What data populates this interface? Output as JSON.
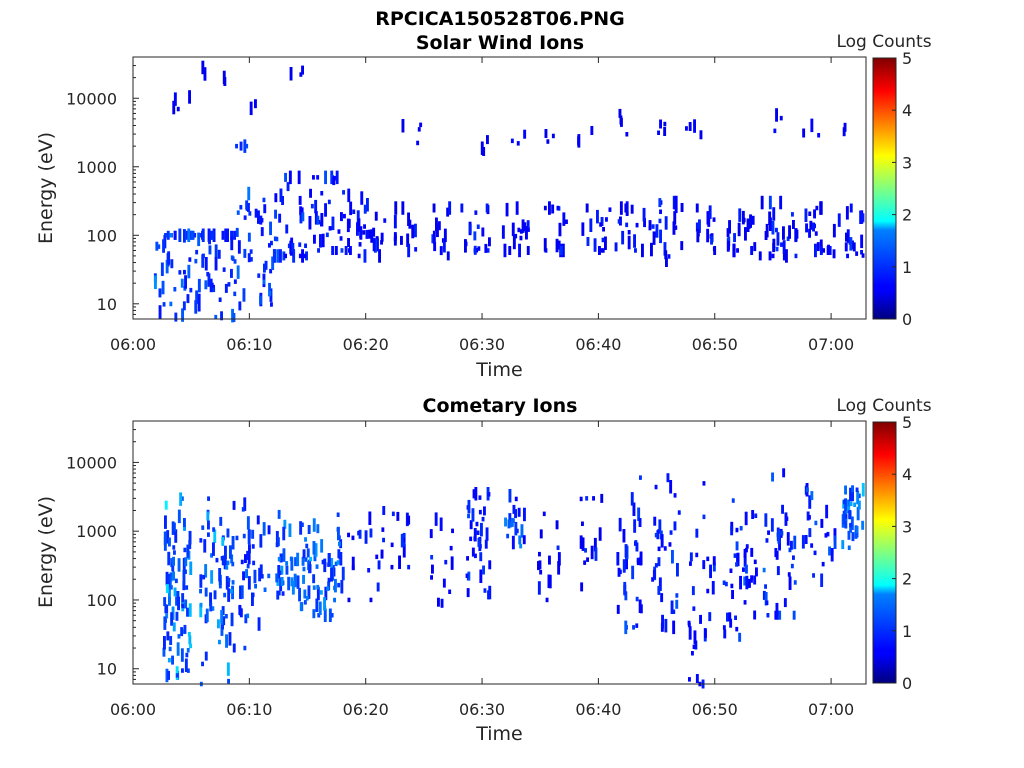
{
  "figure": {
    "filename": "RPCICA150528T06.PNG"
  },
  "chart_data": [
    {
      "type": "heatmap",
      "title": "Solar Wind Ions",
      "xlabel": "Time",
      "ylabel": "Energy (eV)",
      "yscale": "log",
      "ylim": [
        6,
        40000
      ],
      "xlim_minutes": [
        0,
        63
      ],
      "x_tick_labels": [
        "06:00",
        "06:10",
        "06:20",
        "06:30",
        "06:40",
        "06:50",
        "07:00"
      ],
      "y_tick_labels": [
        "10",
        "100",
        "1000",
        "10000"
      ],
      "colorbar": {
        "label": "Log Counts",
        "range": [
          0,
          5
        ],
        "tick_labels": [
          "0",
          "1",
          "2",
          "3",
          "4",
          "5"
        ],
        "colormap": "jet"
      },
      "clusters": [
        {
          "t": 3.7,
          "e": 40,
          "sp": 22,
          "w": 1.8,
          "f": [
            3,
            100
          ],
          "n": 60,
          "lv": 0.5,
          "hi": 1.4
        },
        {
          "t": 7.2,
          "e": 30,
          "sp": 22,
          "w": 1.6,
          "f": [
            3,
            100
          ],
          "n": 55,
          "lv": 0.5,
          "hi": 1.3
        },
        {
          "t": 10.5,
          "e": 60,
          "sp": 25,
          "w": 1.6,
          "f": [
            5,
            2000
          ],
          "n": 50,
          "lv": 0.5,
          "hi": 1.2
        },
        {
          "t": 13.5,
          "e": 120,
          "sp": 10,
          "w": 1.5,
          "f": [
            50,
            700
          ],
          "n": 35,
          "lv": 0.4,
          "hi": 1.0
        },
        {
          "t": 17.0,
          "e": 140,
          "sp": 8,
          "w": 1.8,
          "f": [
            60,
            700
          ],
          "n": 40,
          "lv": 0.4,
          "hi": 1.0
        },
        {
          "t": 20.3,
          "e": 110,
          "sp": 4,
          "w": 1.8,
          "f": [
            50,
            350
          ],
          "n": 30,
          "lv": 0.3,
          "hi": 0.8
        },
        {
          "t": 23.3,
          "e": 110,
          "sp": 3,
          "w": 1.0,
          "f": [
            60,
            250
          ],
          "n": 15,
          "lv": 0.3,
          "hi": 0.8
        },
        {
          "t": 26.5,
          "e": 110,
          "sp": 3,
          "w": 0.8,
          "f": [
            50,
            250
          ],
          "n": 14,
          "lv": 0.3,
          "hi": 0.8
        },
        {
          "t": 29.5,
          "e": 110,
          "sp": 3,
          "w": 1.3,
          "f": [
            60,
            250
          ],
          "n": 18,
          "lv": 0.3,
          "hi": 0.8
        },
        {
          "t": 33.0,
          "e": 110,
          "sp": 3,
          "w": 1.3,
          "f": [
            60,
            250
          ],
          "n": 18,
          "lv": 0.3,
          "hi": 0.8
        },
        {
          "t": 36.5,
          "e": 110,
          "sp": 3,
          "w": 1.3,
          "f": [
            60,
            250
          ],
          "n": 16,
          "lv": 0.3,
          "hi": 0.8
        },
        {
          "t": 39.8,
          "e": 120,
          "sp": 3,
          "w": 1.2,
          "f": [
            60,
            250
          ],
          "n": 16,
          "lv": 0.3,
          "hi": 0.8
        },
        {
          "t": 42.8,
          "e": 120,
          "sp": 3,
          "w": 1.3,
          "f": [
            60,
            250
          ],
          "n": 18,
          "lv": 0.3,
          "hi": 0.8
        },
        {
          "t": 45.8,
          "e": 110,
          "sp": 4,
          "w": 1.5,
          "f": [
            40,
            300
          ],
          "n": 25,
          "lv": 0.3,
          "hi": 0.8
        },
        {
          "t": 49.0,
          "e": 110,
          "sp": 3,
          "w": 1.0,
          "f": [
            60,
            250
          ],
          "n": 15,
          "lv": 0.3,
          "hi": 0.8
        },
        {
          "t": 52.3,
          "e": 110,
          "sp": 4,
          "w": 1.4,
          "f": [
            60,
            300
          ],
          "n": 20,
          "lv": 0.3,
          "hi": 0.8
        },
        {
          "t": 55.5,
          "e": 100,
          "sp": 4,
          "w": 1.6,
          "f": [
            50,
            300
          ],
          "n": 30,
          "lv": 0.3,
          "hi": 0.8
        },
        {
          "t": 58.8,
          "e": 110,
          "sp": 3,
          "w": 1.3,
          "f": [
            60,
            250
          ],
          "n": 20,
          "lv": 0.3,
          "hi": 0.8
        },
        {
          "t": 61.8,
          "e": 100,
          "sp": 3,
          "w": 1.6,
          "f": [
            50,
            250
          ],
          "n": 22,
          "lv": 0.3,
          "hi": 0.8
        },
        {
          "t": 7.0,
          "e": 20000,
          "sp": 2,
          "w": 1.0,
          "f": [
            3000,
            30000
          ],
          "n": 4,
          "lv": 0.3,
          "hi": 0.5
        },
        {
          "t": 14.5,
          "e": 20000,
          "sp": 1.5,
          "w": 1.0,
          "f": [
            3000,
            30000
          ],
          "n": 3,
          "lv": 0.3,
          "hi": 0.5
        },
        {
          "t": 24.0,
          "e": 3000,
          "sp": 1.5,
          "w": 1.0,
          "f": [
            1000,
            6000
          ],
          "n": 4,
          "lv": 0.3,
          "hi": 0.5
        },
        {
          "t": 30.0,
          "e": 2000,
          "sp": 1.5,
          "w": 0.8,
          "f": [
            1000,
            5000
          ],
          "n": 3,
          "lv": 0.3,
          "hi": 0.5
        },
        {
          "t": 33.0,
          "e": 2500,
          "sp": 1.5,
          "w": 0.8,
          "f": [
            1000,
            5000
          ],
          "n": 3,
          "lv": 0.3,
          "hi": 0.5
        },
        {
          "t": 36.0,
          "e": 2500,
          "sp": 1.5,
          "w": 0.8,
          "f": [
            1000,
            5000
          ],
          "n": 3,
          "lv": 0.3,
          "hi": 0.5
        },
        {
          "t": 39.0,
          "e": 2500,
          "sp": 1.5,
          "w": 1.0,
          "f": [
            1000,
            5000
          ],
          "n": 3,
          "lv": 0.3,
          "hi": 0.5
        },
        {
          "t": 42.5,
          "e": 4000,
          "sp": 1.5,
          "w": 1.0,
          "f": [
            2000,
            8000
          ],
          "n": 4,
          "lv": 0.3,
          "hi": 0.5
        },
        {
          "t": 45.5,
          "e": 3500,
          "sp": 1.5,
          "w": 1.0,
          "f": [
            2000,
            8000
          ],
          "n": 4,
          "lv": 0.3,
          "hi": 0.5
        },
        {
          "t": 48.5,
          "e": 4000,
          "sp": 1.5,
          "w": 1.0,
          "f": [
            2000,
            8000
          ],
          "n": 4,
          "lv": 0.3,
          "hi": 0.5
        },
        {
          "t": 55.0,
          "e": 4000,
          "sp": 1.5,
          "w": 0.8,
          "f": [
            2000,
            8000
          ],
          "n": 3,
          "lv": 0.3,
          "hi": 0.5
        },
        {
          "t": 58.5,
          "e": 4000,
          "sp": 1.5,
          "w": 1.0,
          "f": [
            2000,
            8000
          ],
          "n": 3,
          "lv": 0.3,
          "hi": 0.5
        },
        {
          "t": 61.5,
          "e": 3500,
          "sp": 1.5,
          "w": 0.5,
          "f": [
            2000,
            8000
          ],
          "n": 2,
          "lv": 0.3,
          "hi": 0.5
        },
        {
          "t": 4.5,
          "e": 8000,
          "sp": 1.5,
          "w": 1.0,
          "f": [
            5000,
            15000
          ],
          "n": 4,
          "lv": 0.3,
          "hi": 0.5
        },
        {
          "t": 10.5,
          "e": 8000,
          "sp": 1.5,
          "w": 0.5,
          "f": [
            5000,
            15000
          ],
          "n": 2,
          "lv": 0.3,
          "hi": 0.5
        }
      ]
    },
    {
      "type": "heatmap",
      "title": "Cometary Ions",
      "xlabel": "Time",
      "ylabel": "Energy (eV)",
      "yscale": "log",
      "ylim": [
        6,
        40000
      ],
      "xlim_minutes": [
        0,
        63
      ],
      "x_tick_labels": [
        "06:00",
        "06:10",
        "06:20",
        "06:30",
        "06:40",
        "06:50",
        "07:00"
      ],
      "y_tick_labels": [
        "10",
        "100",
        "1000",
        "10000"
      ],
      "colorbar": {
        "label": "Log Counts",
        "range": [
          0,
          5
        ],
        "tick_labels": [
          "0",
          "1",
          "2",
          "3",
          "4",
          "5"
        ],
        "colormap": "jet"
      },
      "clusters": [
        {
          "t": 3.8,
          "e": 100,
          "sp": 15,
          "w": 1.2,
          "f": [
            8,
            10000
          ],
          "n": 90,
          "lv": 0.6,
          "hi": 1.9
        },
        {
          "t": 7.2,
          "e": 150,
          "sp": 15,
          "w": 1.4,
          "f": [
            6,
            12000
          ],
          "n": 70,
          "lv": 0.6,
          "hi": 1.8
        },
        {
          "t": 10.2,
          "e": 300,
          "sp": 12,
          "w": 1.6,
          "f": [
            20,
            12000
          ],
          "n": 45,
          "lv": 0.5,
          "hi": 1.3
        },
        {
          "t": 13.8,
          "e": 300,
          "sp": 4,
          "w": 1.5,
          "f": [
            80,
            3000
          ],
          "n": 55,
          "lv": 0.6,
          "hi": 1.7
        },
        {
          "t": 16.8,
          "e": 250,
          "sp": 5,
          "w": 1.3,
          "f": [
            60,
            18000
          ],
          "n": 55,
          "lv": 0.6,
          "hi": 1.6
        },
        {
          "t": 20.0,
          "e": 400,
          "sp": 6,
          "w": 1.6,
          "f": [
            100,
            2000
          ],
          "n": 20,
          "lv": 0.3,
          "hi": 0.8
        },
        {
          "t": 23.0,
          "e": 800,
          "sp": 3,
          "w": 0.8,
          "f": [
            300,
            2500
          ],
          "n": 12,
          "lv": 0.3,
          "hi": 0.8
        },
        {
          "t": 26.5,
          "e": 300,
          "sp": 6,
          "w": 1.0,
          "f": [
            80,
            2500
          ],
          "n": 14,
          "lv": 0.3,
          "hi": 0.8
        },
        {
          "t": 29.7,
          "e": 600,
          "sp": 12,
          "w": 1.0,
          "f": [
            10,
            3500
          ],
          "n": 40,
          "lv": 0.4,
          "hi": 1.0
        },
        {
          "t": 32.8,
          "e": 1200,
          "sp": 3,
          "w": 1.0,
          "f": [
            600,
            3500
          ],
          "n": 20,
          "lv": 0.4,
          "hi": 1.2
        },
        {
          "t": 35.8,
          "e": 400,
          "sp": 6,
          "w": 1.0,
          "f": [
            100,
            2500
          ],
          "n": 15,
          "lv": 0.3,
          "hi": 0.8
        },
        {
          "t": 39.5,
          "e": 600,
          "sp": 8,
          "w": 1.0,
          "f": [
            100,
            3000
          ],
          "n": 15,
          "lv": 0.3,
          "hi": 0.8
        },
        {
          "t": 42.6,
          "e": 300,
          "sp": 12,
          "w": 1.2,
          "f": [
            40,
            6000
          ],
          "n": 35,
          "lv": 0.4,
          "hi": 1.0
        },
        {
          "t": 45.8,
          "e": 400,
          "sp": 15,
          "w": 1.2,
          "f": [
            40,
            6000
          ],
          "n": 35,
          "lv": 0.4,
          "hi": 1.0
        },
        {
          "t": 48.8,
          "e": 80,
          "sp": 20,
          "w": 1.2,
          "f": [
            6,
            6000
          ],
          "n": 30,
          "lv": 0.4,
          "hi": 0.9
        },
        {
          "t": 52.2,
          "e": 300,
          "sp": 10,
          "w": 1.4,
          "f": [
            6,
            4000
          ],
          "n": 45,
          "lv": 0.4,
          "hi": 1.1
        },
        {
          "t": 55.6,
          "e": 400,
          "sp": 8,
          "w": 1.4,
          "f": [
            60,
            8000
          ],
          "n": 40,
          "lv": 0.4,
          "hi": 1.1
        },
        {
          "t": 59.0,
          "e": 1200,
          "sp": 6,
          "w": 1.4,
          "f": [
            40,
            4000
          ],
          "n": 25,
          "lv": 0.4,
          "hi": 1.2
        },
        {
          "t": 61.8,
          "e": 2000,
          "sp": 4,
          "w": 1.0,
          "f": [
            60,
            4000
          ],
          "n": 35,
          "lv": 0.6,
          "hi": 1.7
        }
      ]
    }
  ]
}
